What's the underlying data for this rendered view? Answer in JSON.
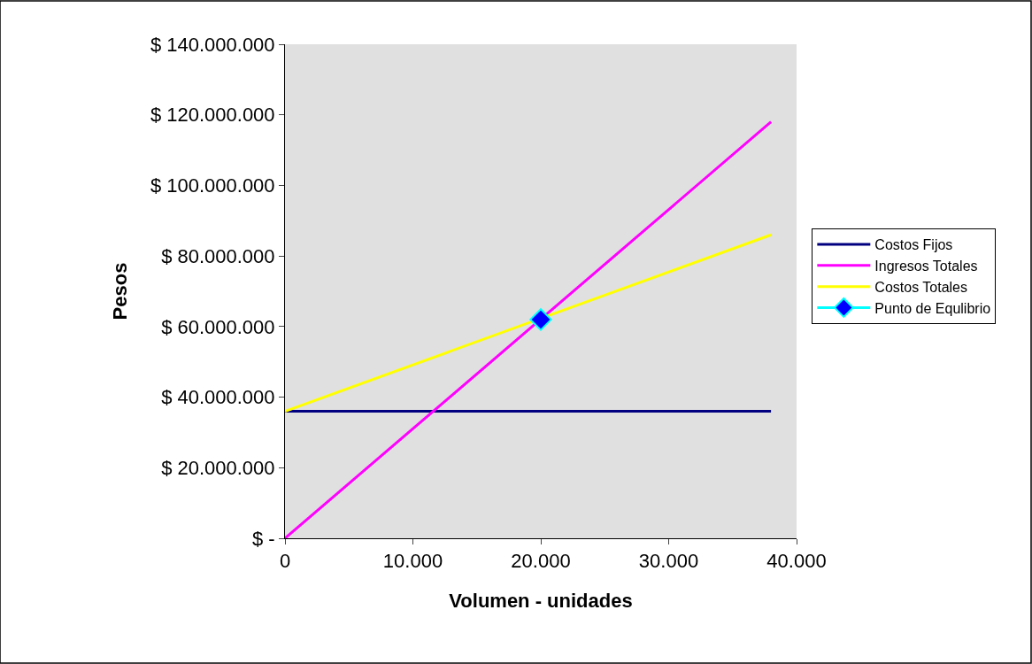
{
  "chart_data": {
    "type": "line",
    "xlabel": "Volumen - unidades",
    "ylabel": "Pesos",
    "series": [
      {
        "name": "Costos Fijos",
        "color": "#000080",
        "x": [
          0,
          38000
        ],
        "values": [
          36000000,
          36000000
        ]
      },
      {
        "name": "Ingresos Totales",
        "color": "#ff00ff",
        "x": [
          0,
          38000
        ],
        "values": [
          0,
          118000000
        ]
      },
      {
        "name": "Costos Totales",
        "color": "#ffff00",
        "x": [
          0,
          38000
        ],
        "values": [
          36000000,
          86000000
        ]
      },
      {
        "name": "Punto de Equlibrio",
        "type": "scatter",
        "marker": "diamond",
        "color": "#0000ff",
        "x": [
          20000
        ],
        "values": [
          62000000
        ]
      }
    ],
    "xlim": [
      0,
      40000
    ],
    "xticks": [
      0,
      {
        "value": 10000,
        "label": "10.000"
      },
      {
        "value": 20000,
        "label": "20.000"
      },
      {
        "value": 30000,
        "label": "30.000"
      },
      {
        "value": 40000,
        "label": "40.000"
      }
    ],
    "ylim": [
      0,
      140000000
    ],
    "yticks": [
      {
        "value": 0,
        "label": "$ -"
      },
      {
        "value": 20000000,
        "label": "$ 20.000.000"
      },
      {
        "value": 40000000,
        "label": "$ 40.000.000"
      },
      {
        "value": 60000000,
        "label": "$ 60.000.000"
      },
      {
        "value": 80000000,
        "label": "$ 80.000.000"
      },
      {
        "value": 100000000,
        "label": "$ 100.000.000"
      },
      {
        "value": 120000000,
        "label": "$ 120.000.000"
      },
      {
        "value": 140000000,
        "label": "$ 140.000.000"
      }
    ],
    "grid": false,
    "legend": "right",
    "marker": "none",
    "line_style": "solid"
  }
}
